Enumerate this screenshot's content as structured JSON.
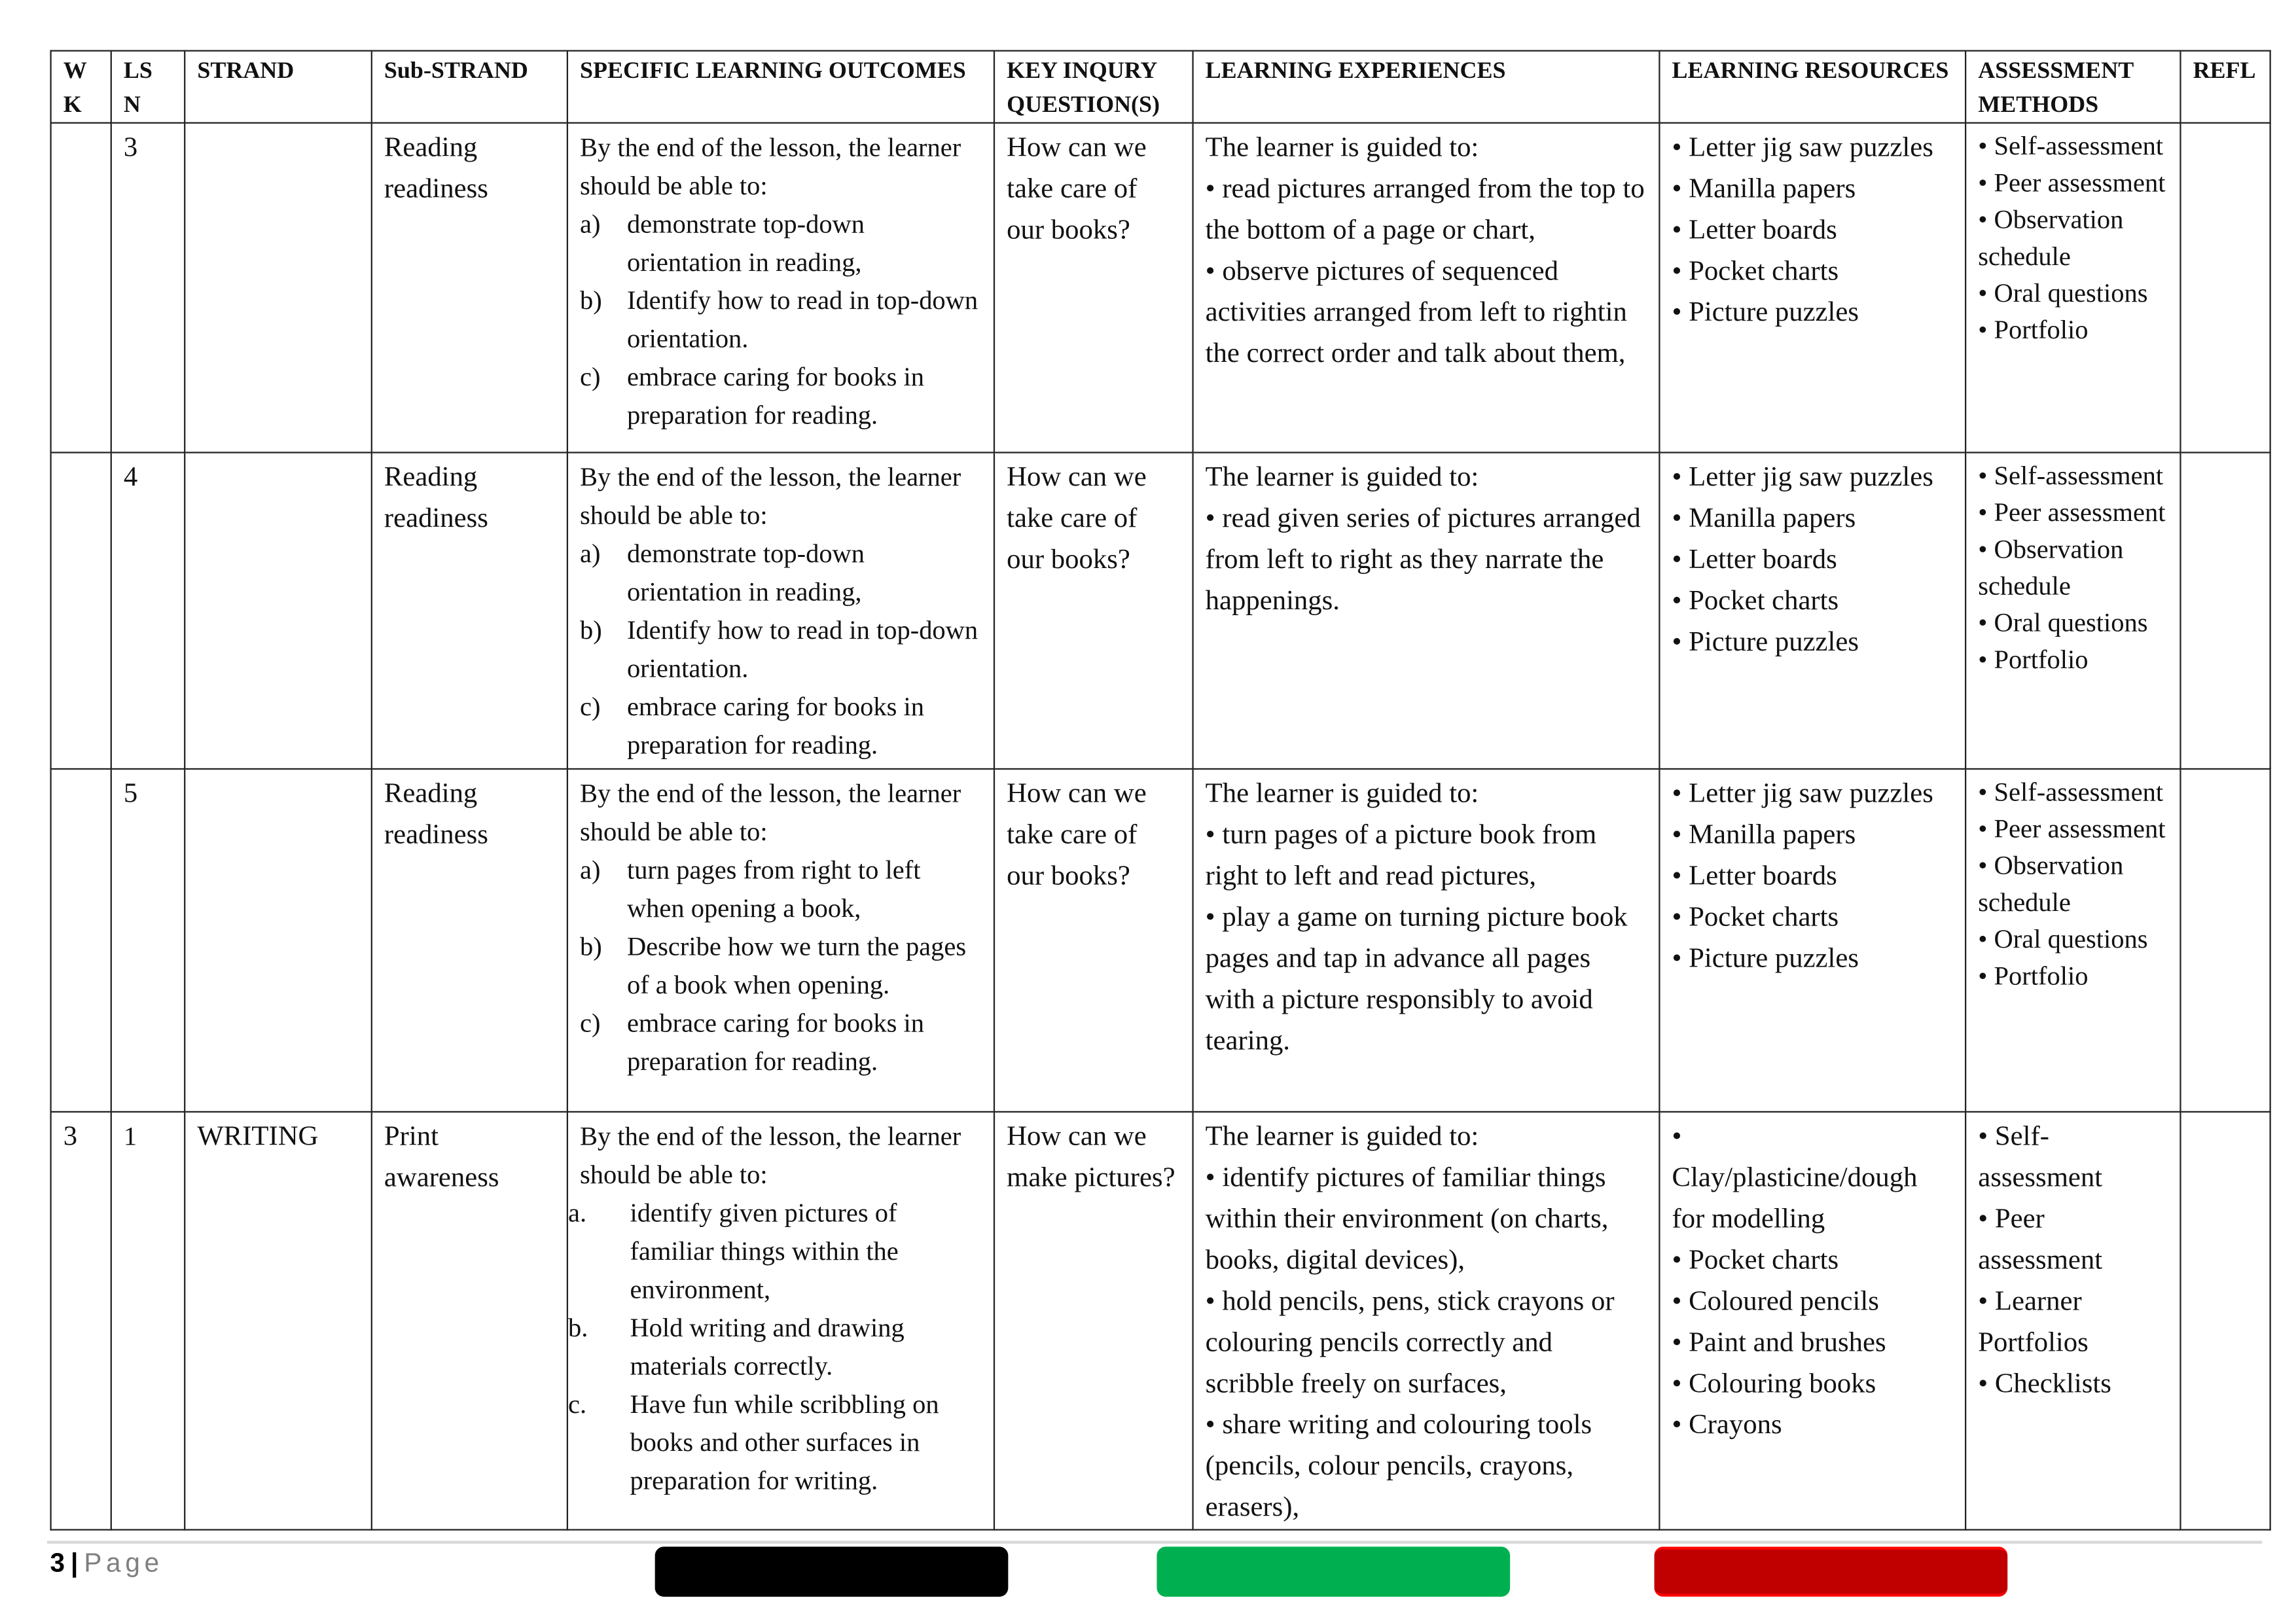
{
  "headers": [
    "W K",
    "LS N",
    "STRAND",
    "Sub-STRAND",
    "SPECIFIC LEARNING OUTCOMES",
    "KEY INQURY QUESTION(S)",
    "LEARNING EXPERIENCES",
    "LEARNING RESOURCES",
    "ASSESSMENT METHODS",
    "REFL"
  ],
  "rows": [
    {
      "wk": "",
      "lsn": "3",
      "strand": "",
      "sub": "Reading readiness",
      "outcomes_intro": "By the end of the lesson, the learner should be able to:",
      "outcomes": [
        {
          "m": "a)",
          "t": "demonstrate top-down orientation in reading,"
        },
        {
          "m": "b)",
          "t": "Identify how to read in top-down orientation."
        },
        {
          "m": "c)",
          "t": "embrace caring for books in preparation for reading."
        }
      ],
      "question": "How can we take care of our books?",
      "experiences": [
        "The learner is guided to:",
        "• read pictures arranged from the top to the bottom of a page or chart,",
        "• observe pictures of sequenced activities arranged from left to rightin the correct order and talk about them,"
      ],
      "resources": [
        "• Letter jig saw puzzles",
        "• Manilla papers",
        "• Letter boards",
        "• Pocket charts",
        "• Picture puzzles"
      ],
      "assessment": [
        "• Self-assessment",
        "• Peer assessment",
        "• Observation schedule",
        "• Oral questions",
        "• Portfolio"
      ],
      "refl": ""
    },
    {
      "wk": "",
      "lsn": "4",
      "strand": "",
      "sub": "Reading readiness",
      "outcomes_intro": "By the end of the lesson, the learner should be able to:",
      "outcomes": [
        {
          "m": "a)",
          "t": "demonstrate top-down orientation in reading,"
        },
        {
          "m": "b)",
          "t": "Identify how to read in top-down orientation."
        },
        {
          "m": "c)",
          "t": "embrace caring for books in preparation for reading."
        }
      ],
      "question": "How can we take care of our books?",
      "experiences": [
        "The learner is guided to:",
        "• read given series of pictures arranged from left to right as they narrate the happenings."
      ],
      "resources": [
        "• Letter jig saw puzzles",
        "• Manilla papers",
        "• Letter boards",
        "• Pocket charts",
        "• Picture puzzles"
      ],
      "assessment": [
        "• Self-assessment",
        "• Peer assessment",
        "• Observation schedule",
        "• Oral questions",
        "• Portfolio"
      ],
      "refl": ""
    },
    {
      "wk": "",
      "lsn": "5",
      "strand": "",
      "sub": "Reading readiness",
      "outcomes_intro": "By the end of the lesson, the learner should be able to:",
      "outcomes": [
        {
          "m": "a)",
          "t": "turn pages from right to left when opening a book,"
        },
        {
          "m": "b)",
          "t": "Describe how we turn the pages of a book when opening."
        },
        {
          "m": "c)",
          "t": "embrace caring for books in preparation for reading."
        }
      ],
      "question": "How can we take care of our books?",
      "experiences": [
        "The learner is guided to:",
        "• turn pages of a picture book from right to left and read pictures,",
        "• play a game on turning picture book pages and tap in advance all pages with a picture responsibly to avoid tearing."
      ],
      "resources": [
        "• Letter jig saw puzzles",
        "• Manilla papers",
        "• Letter boards",
        "• Pocket charts",
        "• Picture puzzles"
      ],
      "assessment": [
        "• Self-assessment",
        "• Peer assessment",
        "• Observation schedule",
        "• Oral questions",
        "• Portfolio"
      ],
      "refl": ""
    },
    {
      "wk": "3",
      "lsn": "1",
      "strand": "WRITING",
      "sub": "Print awareness",
      "outcomes_intro": "By the end of the lesson, the learner should be able to:",
      "outcomes": [
        {
          "m": "a.",
          "t": "identify given pictures of familiar things within the environment,"
        },
        {
          "m": "b.",
          "t": "Hold writing and drawing materials correctly."
        },
        {
          "m": "c.",
          "t": "Have fun while scribbling on books and other surfaces in preparation for writing."
        }
      ],
      "question": "How can we make pictures?",
      "experiences": [
        "The learner is guided to:",
        "• identify pictures of familiar things within their environment (on charts, books, digital devices),",
        "• hold pencils, pens, stick crayons or colouring pencils correctly and scribble freely on surfaces,",
        "• share writing and colouring tools (pencils, colour pencils, crayons, erasers),"
      ],
      "resources": [
        "•",
        "Clay/plasticine/dough for modelling",
        "• Pocket charts",
        "• Coloured pencils",
        "• Paint and brushes",
        "• Colouring books",
        "• Crayons"
      ],
      "assessment": [
        "• Self-assessment",
        "• Peer assessment",
        "• Learner Portfolios",
        "• Checklists"
      ],
      "refl": ""
    }
  ],
  "footer": {
    "page_number": "3",
    "page_label": "Page",
    "separator": "|"
  },
  "colors": {
    "bar1": "#000000",
    "bar2": "#00b050",
    "bar3": "#c00000"
  }
}
